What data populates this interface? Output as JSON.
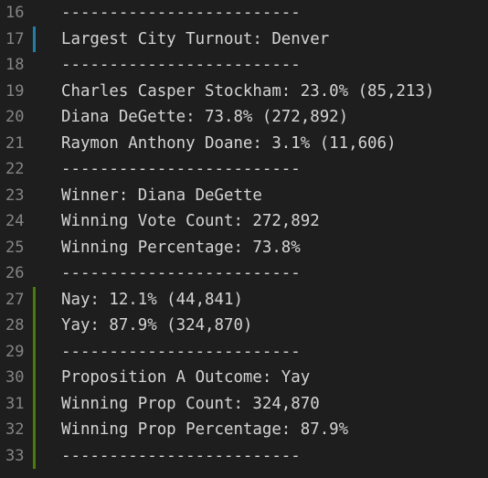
{
  "editor": {
    "lines": [
      {
        "num": "16",
        "text": "-------------------------",
        "mark": ""
      },
      {
        "num": "17",
        "text": "Largest City Turnout: Denver",
        "mark": "modified"
      },
      {
        "num": "18",
        "text": "-------------------------",
        "mark": ""
      },
      {
        "num": "19",
        "text": "Charles Casper Stockham: 23.0% (85,213)",
        "mark": ""
      },
      {
        "num": "20",
        "text": "Diana DeGette: 73.8% (272,892)",
        "mark": ""
      },
      {
        "num": "21",
        "text": "Raymon Anthony Doane: 3.1% (11,606)",
        "mark": ""
      },
      {
        "num": "22",
        "text": "-------------------------",
        "mark": ""
      },
      {
        "num": "23",
        "text": "Winner: Diana DeGette",
        "mark": ""
      },
      {
        "num": "24",
        "text": "Winning Vote Count: 272,892",
        "mark": ""
      },
      {
        "num": "25",
        "text": "Winning Percentage: 73.8%",
        "mark": ""
      },
      {
        "num": "26",
        "text": "-------------------------",
        "mark": ""
      },
      {
        "num": "27",
        "text": "Nay: 12.1% (44,841)",
        "mark": "added"
      },
      {
        "num": "28",
        "text": "Yay: 87.9% (324,870)",
        "mark": "added"
      },
      {
        "num": "29",
        "text": "-------------------------",
        "mark": "added"
      },
      {
        "num": "30",
        "text": "Proposition A Outcome: Yay",
        "mark": "added"
      },
      {
        "num": "31",
        "text": "Winning Prop Count: 324,870",
        "mark": "added"
      },
      {
        "num": "32",
        "text": "Winning Prop Percentage: 87.9%",
        "mark": "added"
      },
      {
        "num": "33",
        "text": "-------------------------",
        "mark": "added"
      }
    ]
  },
  "colors": {
    "background": "#1e1e1e",
    "text": "#d4d4d4",
    "line_number": "#858585",
    "modified_marker": "#1b81a8",
    "added_marker": "#487e02"
  }
}
